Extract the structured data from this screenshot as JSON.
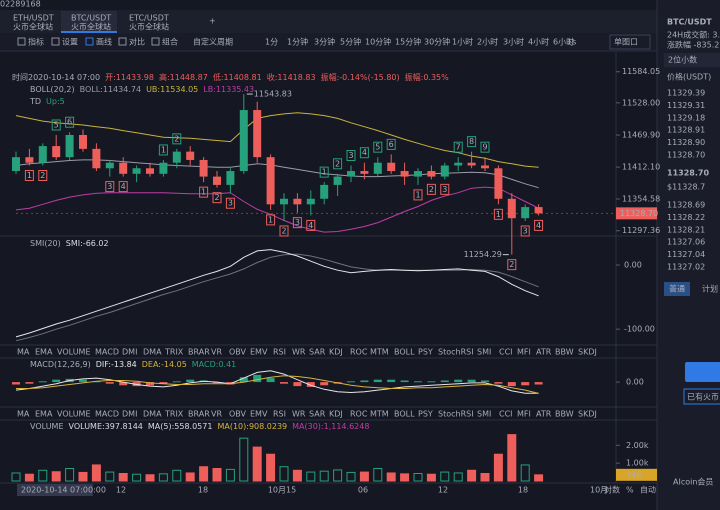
{
  "window": {
    "account": "02289168"
  },
  "tabs": {
    "active": 1,
    "items": [
      {
        "name": "ETH/USDT",
        "sub": "火币全球站"
      },
      {
        "name": "BTC/USDT",
        "sub": "火币全球站"
      },
      {
        "name": "ETC/USDT",
        "sub": "火币全球站"
      }
    ]
  },
  "toolbar": {
    "tools": [
      {
        "label": "指标"
      },
      {
        "label": "设置"
      },
      {
        "label": "画线",
        "active": true
      },
      {
        "label": "对比"
      },
      {
        "label": "组合"
      }
    ],
    "custom": "自定义周期",
    "periods": [
      {
        "label": "1分"
      },
      {
        "label": "1分钟"
      },
      {
        "label": "3分钟"
      },
      {
        "label": "5分钟"
      },
      {
        "label": "10分钟"
      },
      {
        "label": "15分钟"
      },
      {
        "label": "30分钟"
      },
      {
        "label": "1小时",
        "active": true
      },
      {
        "label": "2小时"
      },
      {
        "label": "3小时"
      },
      {
        "label": "4小时"
      },
      {
        "label": "6小时"
      }
    ],
    "speed": "1s",
    "layout": "单图口"
  },
  "main_chart": {
    "info": [
      "时间2020-10-14 07:00",
      "开:11433.98",
      "高:11448.87",
      "低:11408.81",
      "收:11418.83",
      "振幅:-0.14%(-15.80)",
      "振幅:0.35%"
    ],
    "boll_legend": [
      "BOLL(20,2)",
      "BOLL:11434.74",
      "UB:11534.05",
      "LB:11335.43"
    ],
    "td_legend": [
      "TD",
      "Up:5"
    ],
    "ylim": [
      11241,
      11598
    ],
    "yticks": [
      11584.05,
      {
        "value": 11528,
        "label": "11528.00"
      },
      {
        "value": 11469.9,
        "label": "11469.90"
      },
      {
        "value": 11412.1,
        "label": "11412.10"
      },
      11354.58,
      11297.36
    ],
    "last_price": {
      "value": 11328.7,
      "label": "11328.70"
    },
    "high_note": 11543.83,
    "low_note": 11254.29,
    "up_color": "#26a17b",
    "down_color": "#ee5e5b",
    "open": [
      11405,
      11430,
      11420,
      11450,
      11430,
      11470,
      11445,
      11410,
      11420,
      11400,
      11410,
      11400,
      11420,
      11440,
      11425,
      11395,
      11380,
      11405,
      11515,
      11430,
      11345,
      11355,
      11345,
      11355,
      11380,
      11395,
      11405,
      11400,
      11420,
      11405,
      11395,
      11405,
      11395,
      11415,
      11420,
      11415,
      11410,
      11355,
      11320,
      11340
    ],
    "high": [
      11440,
      11445,
      11455,
      11470,
      11475,
      11480,
      11455,
      11425,
      11430,
      11415,
      11420,
      11425,
      11445,
      11450,
      11430,
      11405,
      11410,
      11543.83,
      11530,
      11435,
      11365,
      11365,
      11370,
      11385,
      11400,
      11415,
      11420,
      11430,
      11435,
      11420,
      11410,
      11415,
      11420,
      11430,
      11440,
      11430,
      11415,
      11365,
      11345,
      11345
    ],
    "low": [
      11400,
      11415,
      11415,
      11425,
      11425,
      11440,
      11405,
      11395,
      11395,
      11385,
      11395,
      11395,
      11410,
      11415,
      11385,
      11375,
      11365,
      11400,
      11420,
      11335,
      11315,
      11330,
      11325,
      11345,
      11360,
      11385,
      11390,
      11395,
      11400,
      11380,
      11380,
      11390,
      11390,
      11405,
      11410,
      11405,
      11345,
      11254.29,
      11315,
      11325
    ],
    "close": [
      11430,
      11420,
      11450,
      11430,
      11470,
      11445,
      11410,
      11420,
      11400,
      11410,
      11400,
      11420,
      11440,
      11425,
      11395,
      11380,
      11405,
      11515,
      11430,
      11345,
      11355,
      11345,
      11355,
      11380,
      11395,
      11405,
      11400,
      11420,
      11405,
      11395,
      11405,
      11395,
      11415,
      11420,
      11415,
      11410,
      11355,
      11320,
      11340,
      11328.7
    ],
    "boll": {
      "upper": [
        11505,
        11500,
        11495,
        11492,
        11490,
        11488,
        11485,
        11482,
        11478,
        11474,
        11470,
        11466,
        11465,
        11464,
        11462,
        11460,
        11458,
        11480,
        11500,
        11505,
        11508,
        11510,
        11508,
        11505,
        11500,
        11492,
        11485,
        11478,
        11470,
        11462,
        11455,
        11448,
        11442,
        11438,
        11432,
        11428,
        11422,
        11418,
        11414,
        11412
      ],
      "mid": [
        11415,
        11418,
        11420,
        11422,
        11424,
        11425,
        11425,
        11424,
        11422,
        11420,
        11418,
        11416,
        11415,
        11414,
        11413,
        11412,
        11412,
        11415,
        11418,
        11416,
        11412,
        11408,
        11404,
        11400,
        11398,
        11396,
        11395,
        11395,
        11396,
        11397,
        11398,
        11400,
        11401,
        11402,
        11403,
        11402,
        11398,
        11390,
        11382,
        11375
      ],
      "lower": [
        11335,
        11338,
        11345,
        11352,
        11358,
        11362,
        11365,
        11366,
        11366,
        11366,
        11366,
        11366,
        11365,
        11364,
        11364,
        11364,
        11366,
        11350,
        11336,
        11327,
        11316,
        11306,
        11300,
        11295,
        11296,
        11300,
        11305,
        11312,
        11322,
        11332,
        11341,
        11352,
        11360,
        11366,
        11374,
        11376,
        11374,
        11362,
        11350,
        11338
      ],
      "colors": [
        "#c9b33a",
        "#9a9ca8",
        "#c03ca8"
      ]
    },
    "td_above": [
      null,
      null,
      null,
      "5",
      "6",
      null,
      null,
      null,
      null,
      null,
      null,
      "1",
      "2",
      null,
      null,
      null,
      null,
      null,
      null,
      null,
      null,
      null,
      null,
      "1",
      "2",
      "3",
      "4",
      "5",
      "6",
      null,
      null,
      null,
      null,
      "7",
      "8",
      "9",
      null,
      null,
      null,
      null
    ],
    "td_below": [
      null,
      "1",
      "2",
      null,
      null,
      null,
      null,
      "3",
      "4",
      null,
      null,
      null,
      null,
      null,
      "1",
      "2",
      "3",
      null,
      null,
      "1",
      "2",
      "3",
      "4",
      null,
      null,
      null,
      null,
      null,
      null,
      null,
      "1",
      "2",
      "3",
      null,
      null,
      null,
      "1",
      "2",
      "3",
      "4"
    ]
  },
  "smi": {
    "legend": [
      "SMI(20)",
      "SMI:-66.02"
    ],
    "ylim": [
      -120,
      39
    ],
    "yticks": [
      {
        "value": 0,
        "label": "0.00"
      },
      {
        "value": -100,
        "label": "-100.00"
      }
    ],
    "line": [
      -112,
      -106,
      -99,
      -92,
      -86,
      -79,
      -72,
      -65,
      -58,
      -51,
      -44,
      -37,
      -30,
      -23,
      -16,
      -10,
      -2,
      12,
      22,
      24,
      20,
      14,
      6,
      -2,
      -8,
      -12,
      -10,
      -8,
      -7,
      -8,
      -9,
      -8,
      -7,
      -6,
      -8,
      -10,
      -18,
      -30,
      -40,
      -48
    ],
    "signal": [
      -118,
      -113,
      -107,
      -100,
      -94,
      -87,
      -80,
      -74,
      -67,
      -60,
      -53,
      -46,
      -40,
      -33,
      -26,
      -20,
      -14,
      -6,
      4,
      12,
      16,
      17,
      14,
      9,
      3,
      -3,
      -6,
      -8,
      -8,
      -8,
      -8,
      -8,
      -8,
      -8,
      -7,
      -8,
      -11,
      -18,
      -26,
      -34
    ],
    "colors": [
      "#e6e6ea",
      "#6e7182"
    ]
  },
  "indicator_tabs": {
    "items": [
      "MA",
      "EMA",
      "VOLUME",
      "MACD",
      "DMI",
      "DMA",
      "TRIX",
      "BRAR",
      "VR",
      "OBV",
      "EMV",
      "RSI",
      "WR",
      "SAR",
      "KDJ",
      "ROC",
      "MTM",
      "BOLL",
      "PSY",
      "StochRSI",
      "SMI",
      "CCI",
      "MFI",
      "ATR",
      "BBW",
      "SKDJ"
    ],
    "active": [
      20,
      3
    ]
  },
  "macd": {
    "legend": [
      "MACD(12,26,9)",
      "DIF:-13.84",
      "DEA:-14.05",
      "MACD:0.41"
    ],
    "ylim": [
      -31,
      25
    ],
    "yticks": [
      {
        "value": 0,
        "label": "0.00"
      }
    ],
    "hist": [
      -3,
      -2,
      1,
      3,
      4,
      3,
      1,
      -2,
      -4,
      -5,
      -4,
      -2,
      1,
      3,
      2,
      -1,
      -3,
      6,
      9,
      5,
      -2,
      -5,
      -6,
      -4,
      -2,
      1,
      2,
      3,
      3,
      2,
      1,
      1,
      2,
      3,
      3,
      2,
      -2,
      -5,
      -4,
      -3
    ],
    "dif": [
      -10,
      -8,
      -5,
      -2,
      2,
      4,
      5,
      3,
      0,
      -3,
      -5,
      -6,
      -4,
      -1,
      1,
      0,
      -2,
      5,
      12,
      14,
      10,
      3,
      -4,
      -9,
      -12,
      -13,
      -12,
      -10,
      -8,
      -6,
      -5,
      -4,
      -3,
      -2,
      -1,
      -1,
      -5,
      -11,
      -14,
      -13.84
    ],
    "dea": [
      -8,
      -8,
      -7,
      -5,
      -3,
      -1,
      1,
      2,
      2,
      1,
      -1,
      -2,
      -3,
      -3,
      -2,
      -2,
      -2,
      0,
      3,
      6,
      8,
      7,
      5,
      2,
      -1,
      -4,
      -6,
      -7,
      -8,
      -8,
      -7,
      -7,
      -6,
      -5,
      -4,
      -3,
      -4,
      -7,
      -10,
      -14.05
    ],
    "colors": [
      "#e6e6ea",
      "#d9b33a"
    ]
  },
  "volume": {
    "legend": [
      "VOLUME",
      "VOLUME:397.8144",
      "MA(5):558.0571",
      "MA(10):908.0239",
      "MA(30):1,114.6248"
    ],
    "ylim": [
      0,
      3250
    ],
    "yticks": [
      {
        "value": 2000,
        "label": "2.00k"
      },
      {
        "value": 1000,
        "label": "1.00k"
      }
    ],
    "values": [
      450,
      380,
      600,
      520,
      700,
      480,
      900,
      500,
      420,
      380,
      350,
      400,
      600,
      450,
      800,
      700,
      650,
      2400,
      1900,
      1500,
      800,
      600,
      500,
      550,
      620,
      480,
      500,
      700,
      450,
      400,
      420,
      380,
      500,
      450,
      600,
      420,
      1500,
      2600,
      900,
      346
    ],
    "last": 346
  },
  "x_axis": {
    "cursor": "2020-10-14 07:00:00",
    "labels": [
      "12",
      "18",
      "10月15",
      "06",
      "12",
      "18",
      "10月"
    ],
    "toggles": [
      "对数",
      "%",
      "自动"
    ]
  },
  "side_panel": {
    "symbol": "BTC/USDT",
    "stats": [
      "24H成交额: 3.1",
      "涨跌幅 -835.2"
    ],
    "decimals": "2位小数",
    "price_header": "价格(USDT)",
    "asks": [
      "11329.39",
      "11329.31",
      "11329.18",
      "11328.91",
      "11328.90",
      "11328.70"
    ],
    "last": "11328.70",
    "last_usd": "$11328.7",
    "bids": [
      "11328.69",
      "11328.22",
      "11328.21",
      "11327.06",
      "11327.04",
      "11327.02"
    ],
    "order_tabs": [
      "普通",
      "计划"
    ],
    "notice": "已有火币",
    "promo": "AIcoin会员"
  }
}
